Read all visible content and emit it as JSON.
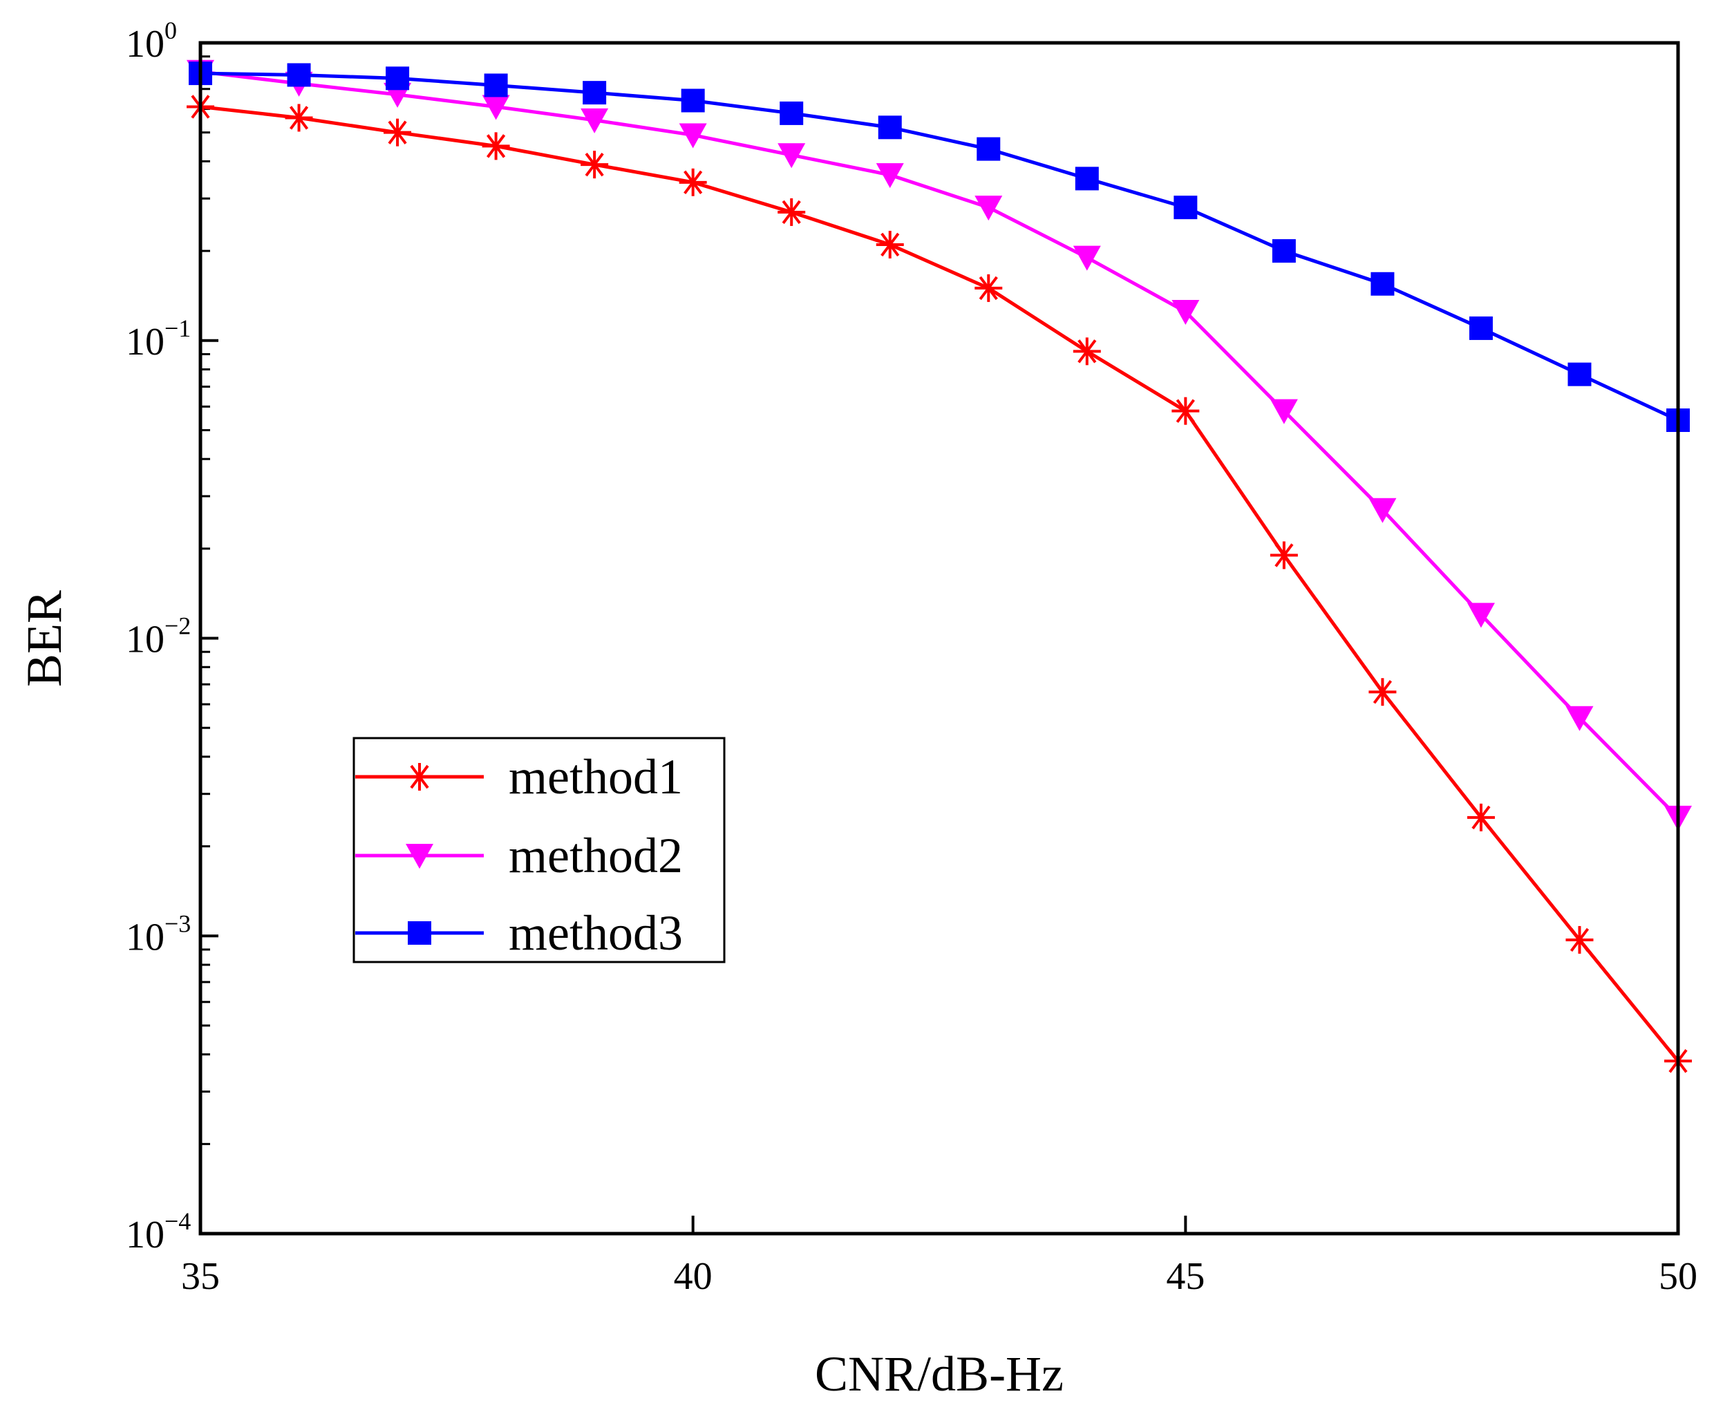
{
  "chart_data": {
    "type": "line",
    "xlabel": "CNR/dB-Hz",
    "ylabel": "BER",
    "xlim": [
      35,
      50
    ],
    "ylim": [
      0.0001,
      1
    ],
    "yscale": "log",
    "grid": false,
    "legend_position": "center-left",
    "x_ticks": [
      {
        "value": 35,
        "label": "35"
      },
      {
        "value": 40,
        "label": "40"
      },
      {
        "value": 45,
        "label": "45"
      },
      {
        "value": 50,
        "label": "50"
      }
    ],
    "y_ticks": [
      {
        "value": 1,
        "base": "10",
        "exp": "0"
      },
      {
        "value": 0.1,
        "base": "10",
        "exp": "−1"
      },
      {
        "value": 0.01,
        "base": "10",
        "exp": "−2"
      },
      {
        "value": 0.001,
        "base": "10",
        "exp": "−3"
      },
      {
        "value": 0.0001,
        "base": "10",
        "exp": "−4"
      }
    ],
    "x": [
      35,
      36,
      37,
      38,
      39,
      40,
      41,
      42,
      43,
      44,
      45,
      46,
      47,
      48,
      49,
      50
    ],
    "series": [
      {
        "name": "method1",
        "color": "#ff0000",
        "marker": "asterisk",
        "values": [
          0.61,
          0.56,
          0.5,
          0.45,
          0.39,
          0.34,
          0.27,
          0.21,
          0.15,
          0.092,
          0.058,
          0.019,
          0.0066,
          0.0025,
          0.00097,
          0.00038
        ]
      },
      {
        "name": "method2",
        "color": "#ff00ff",
        "marker": "triangle-down",
        "values": [
          0.8,
          0.73,
          0.67,
          0.61,
          0.55,
          0.49,
          0.42,
          0.36,
          0.28,
          0.19,
          0.125,
          0.058,
          0.027,
          0.012,
          0.0054,
          0.0025
        ]
      },
      {
        "name": "method3",
        "color": "#0000ff",
        "marker": "square",
        "values": [
          0.79,
          0.78,
          0.76,
          0.72,
          0.68,
          0.64,
          0.58,
          0.52,
          0.44,
          0.35,
          0.28,
          0.2,
          0.155,
          0.11,
          0.077,
          0.054
        ]
      }
    ]
  }
}
